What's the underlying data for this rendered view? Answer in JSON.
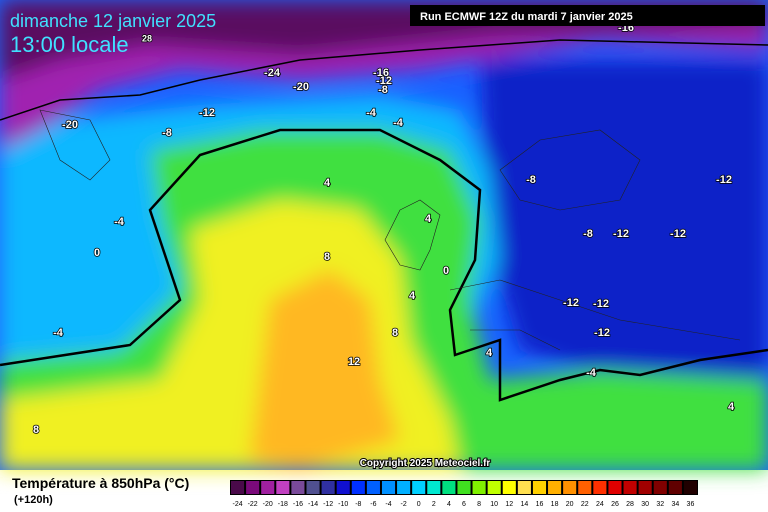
{
  "header": {
    "title": "dimanche 12 janvier 2025",
    "time": "13:00 locale",
    "run": "Run ECMWF 12Z du mardi 7 janvier 2025",
    "copyright": "Copyright 2025 Meteociel.fr"
  },
  "map_labels": [
    "-16",
    "28",
    "-24",
    "-16",
    "-12",
    "-20",
    "-8",
    "-12",
    "-4",
    "-4",
    "-20",
    "-8",
    "-8",
    "-12",
    "4",
    "4",
    "-4",
    "-8",
    "-12",
    "-12",
    "0",
    "8",
    "0",
    "4",
    "-12",
    "-12",
    "-4",
    "8",
    "-12",
    "4",
    "12",
    "-4",
    "4",
    "8"
  ],
  "legend": {
    "title": "Température à 850hPa (°C)",
    "lead": "(+120h)",
    "ticks": [
      -24,
      -22,
      -20,
      -18,
      -16,
      -14,
      -12,
      -10,
      -8,
      -6,
      -4,
      -2,
      0,
      2,
      4,
      6,
      8,
      10,
      12,
      14,
      16,
      18,
      20,
      22,
      24,
      26,
      28,
      30,
      32,
      34,
      36
    ],
    "colors": [
      "#4a0a4a",
      "#7a0a7a",
      "#a020a0",
      "#c040c0",
      "#7a4a9a",
      "#505090",
      "#3030a0",
      "#1010d0",
      "#0030ff",
      "#0060ff",
      "#0090ff",
      "#00b0ff",
      "#00d0ff",
      "#00e8d0",
      "#00e080",
      "#40e020",
      "#80f000",
      "#c0ff00",
      "#ffff00",
      "#ffe050",
      "#ffd000",
      "#ffb000",
      "#ff9000",
      "#ff6000",
      "#ff3000",
      "#e00000",
      "#c00000",
      "#a00000",
      "#800000",
      "#600000",
      "#200000"
    ]
  }
}
